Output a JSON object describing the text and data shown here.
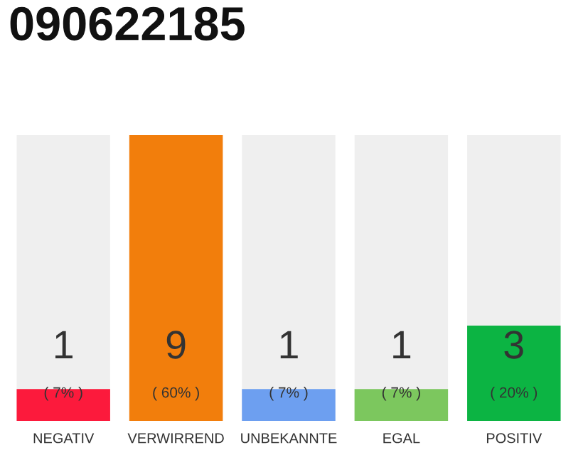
{
  "chart_data": {
    "type": "bar",
    "title": "090622185",
    "categories": [
      "NEGATIV",
      "VERWIRREND",
      "UNBEKANNTE",
      "EGAL",
      "POSITIV"
    ],
    "values": [
      1,
      9,
      1,
      1,
      3
    ],
    "colors": [
      "#fc1a3c",
      "#f27e0c",
      "#6d9ff0",
      "#7cc75e",
      "#0cb443"
    ],
    "ylim": [
      0,
      9
    ],
    "tick_labels": "x",
    "grid": false,
    "data_labels": true,
    "annotations": [
      "( 7% )",
      "( 60% )",
      "( 7% )",
      "( 7% )",
      "( 20% )"
    ]
  }
}
